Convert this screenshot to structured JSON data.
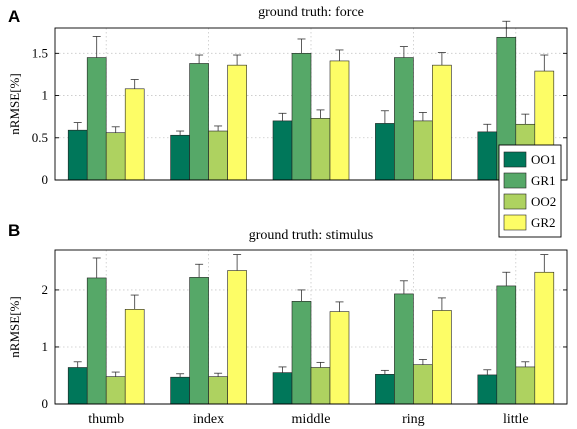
{
  "chart_data": [
    {
      "panel": "A",
      "type": "bar",
      "title": "ground truth: force",
      "ylabel": "nRMSE[%]",
      "xlabel": "",
      "ylim": [
        0,
        1.8
      ],
      "yticks": [
        0,
        0.5,
        1,
        1.5
      ],
      "ytick_labels": [
        "0",
        "0.5",
        "1",
        "1.5"
      ],
      "grid": true,
      "categories": [
        "thumb",
        "index",
        "middle",
        "ring",
        "little"
      ],
      "show_category_labels": false,
      "legend": "right",
      "series": [
        {
          "name": "OO1",
          "color": "#00775a",
          "values": [
            0.59,
            0.53,
            0.7,
            0.67,
            0.57
          ],
          "errors": [
            0.09,
            0.05,
            0.09,
            0.15,
            0.09
          ]
        },
        {
          "name": "GR1",
          "color": "#56a868",
          "values": [
            1.45,
            1.38,
            1.5,
            1.45,
            1.69
          ],
          "errors": [
            0.25,
            0.1,
            0.17,
            0.13,
            0.19
          ]
        },
        {
          "name": "OO2",
          "color": "#aed260",
          "values": [
            0.56,
            0.58,
            0.73,
            0.7,
            0.66
          ],
          "errors": [
            0.07,
            0.06,
            0.1,
            0.1,
            0.12
          ]
        },
        {
          "name": "GR2",
          "color": "#fdfd66",
          "values": [
            1.08,
            1.36,
            1.41,
            1.36,
            1.29
          ],
          "errors": [
            0.11,
            0.12,
            0.13,
            0.15,
            0.19
          ]
        }
      ]
    },
    {
      "panel": "B",
      "type": "bar",
      "title": "ground truth: stimulus",
      "ylabel": "nRMSE[%]",
      "xlabel": "",
      "ylim": [
        0,
        2.7
      ],
      "yticks": [
        0,
        1,
        2
      ],
      "ytick_labels": [
        "0",
        "1",
        "2"
      ],
      "grid": true,
      "categories": [
        "thumb",
        "index",
        "middle",
        "ring",
        "little"
      ],
      "show_category_labels": true,
      "series": [
        {
          "name": "OO1",
          "color": "#00775a",
          "values": [
            0.64,
            0.47,
            0.55,
            0.52,
            0.51
          ],
          "errors": [
            0.1,
            0.06,
            0.1,
            0.07,
            0.09
          ]
        },
        {
          "name": "GR1",
          "color": "#56a868",
          "values": [
            2.21,
            2.22,
            1.8,
            1.93,
            2.07
          ],
          "errors": [
            0.35,
            0.23,
            0.2,
            0.23,
            0.24
          ]
        },
        {
          "name": "OO2",
          "color": "#aed260",
          "values": [
            0.48,
            0.48,
            0.64,
            0.69,
            0.65
          ],
          "errors": [
            0.08,
            0.06,
            0.09,
            0.09,
            0.09
          ]
        },
        {
          "name": "GR2",
          "color": "#fdfd66",
          "values": [
            1.66,
            2.34,
            1.62,
            1.64,
            2.31
          ],
          "errors": [
            0.25,
            0.28,
            0.17,
            0.22,
            0.31
          ]
        }
      ]
    }
  ]
}
